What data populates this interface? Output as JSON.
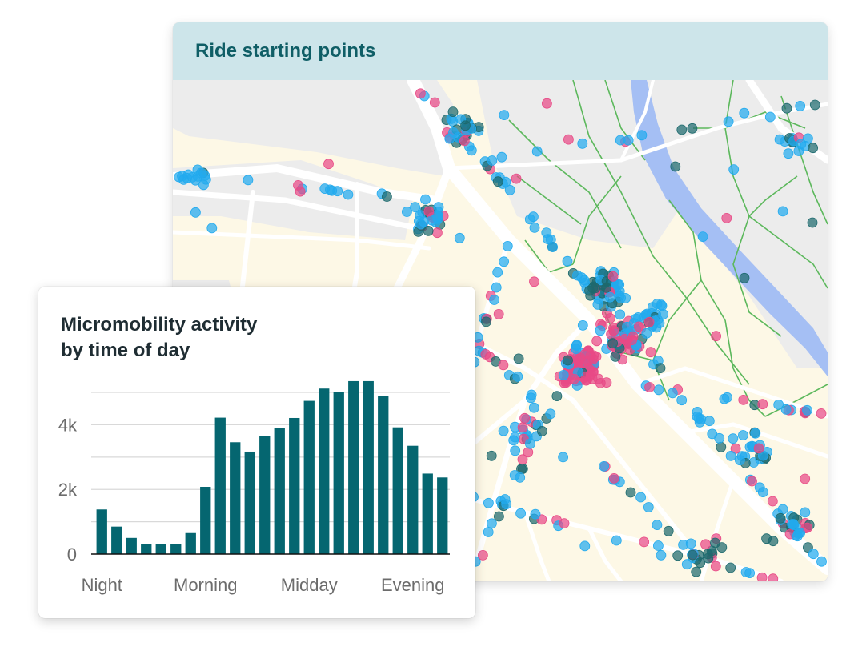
{
  "map": {
    "title": "Ride starting points",
    "colors": {
      "header_bg": "#cde5ea",
      "title": "#0f5e66",
      "land": "#fdf8e6",
      "urban": "#ececec",
      "road": "#ffffff",
      "water": "#a5bff4",
      "paths": "#5cb85c",
      "point_blue": "#22aaee",
      "point_teal": "#1d6a6e",
      "point_pink": "#e84a86"
    }
  },
  "chart_data": {
    "type": "bar",
    "title_lines": [
      "Micromobility activity",
      "by time of day"
    ],
    "values": [
      1380,
      850,
      500,
      300,
      300,
      300,
      650,
      2080,
      4220,
      3460,
      3170,
      3650,
      3900,
      4210,
      4740,
      5120,
      5020,
      5350,
      5350,
      4890,
      3920,
      3350,
      2490,
      2370
    ],
    "ylim": [
      0,
      5200
    ],
    "yticks": [
      0,
      2000,
      4000
    ],
    "ytick_labels": [
      "0",
      "2k",
      "4k"
    ],
    "xtick_labels": [
      "Night",
      "Morning",
      "Midday",
      "Evening"
    ],
    "xtick_hours": [
      0.5,
      7.5,
      14.5,
      21.5
    ],
    "grid": true,
    "bar_color": "#056670",
    "grid_color": "#d9d9d9"
  }
}
